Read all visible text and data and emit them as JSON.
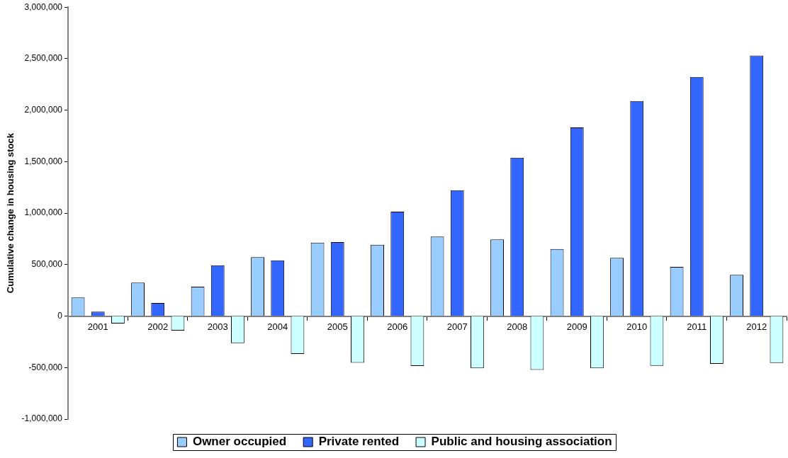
{
  "chart_data": {
    "type": "bar",
    "ylabel": "Cumulative change in housing stock",
    "categories": [
      "2001",
      "2002",
      "2003",
      "2004",
      "2005",
      "2006",
      "2007",
      "2008",
      "2009",
      "2010",
      "2011",
      "2012"
    ],
    "series": [
      {
        "name": "Owner occupied",
        "color": "#99ccff",
        "values": [
          180000,
          326000,
          286000,
          573000,
          714000,
          693000,
          772000,
          744000,
          652000,
          566000,
          478000,
          400000
        ]
      },
      {
        "name": "Private rented",
        "color": "#3366ff",
        "values": [
          44000,
          127000,
          494000,
          541000,
          719000,
          1014000,
          1222000,
          1539000,
          1832000,
          2089000,
          2322000,
          2530000
        ]
      },
      {
        "name": "Public and housing association",
        "color": "#ccffff",
        "values": [
          -72000,
          -141000,
          -263000,
          -367000,
          -453000,
          -485000,
          -506000,
          -522000,
          -506000,
          -483000,
          -464000,
          -455000
        ]
      }
    ],
    "ylim": [
      -1000000,
      3000000
    ],
    "yticks": [
      {
        "value": -1000000,
        "label": "-1,000,000"
      },
      {
        "value": -500000,
        "label": "-500,000"
      },
      0,
      {
        "value": 500000,
        "label": "500,000"
      },
      {
        "value": 1000000,
        "label": "1,000,000"
      },
      {
        "value": 1500000,
        "label": "1,500,000"
      },
      {
        "value": 2000000,
        "label": "2,000,000"
      },
      {
        "value": 2500000,
        "label": "2,500,000"
      },
      {
        "value": 3000000,
        "label": "3,000,000"
      }
    ],
    "grid": false,
    "legend": "bottom"
  }
}
